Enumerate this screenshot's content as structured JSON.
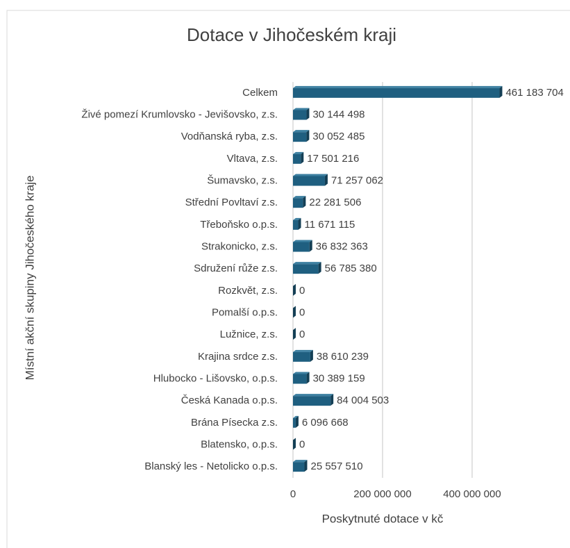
{
  "chart_data": {
    "type": "bar",
    "orientation": "horizontal",
    "title": "Dotace v Jihočeském kraji",
    "y_label": "Místní akční skupiny Jihočeského kraje",
    "x_label": "Poskytnuté dotace v kč",
    "categories": [
      "Celkem",
      "Živé pomezí Krumlovsko - Jevišovsko, z.s.",
      "Vodňanská ryba, z.s.",
      "Vltava, z.s.",
      "Šumavsko, z.s.",
      "Střední Povltaví z.s.",
      "Třeboňsko o.p.s.",
      "Strakonicko, z.s.",
      "Sdružení růže z.s.",
      "Rozkvět, z.s.",
      "Pomalší o.p.s.",
      "Lužnice, z.s.",
      "Krajina srdce z.s.",
      "Hlubocko - Lišovsko, o.p.s.",
      "Česká Kanada o.p.s.",
      "Brána Písecka z.s.",
      "Blatensko, o.p.s.",
      "Blanský les - Netolicko o.p.s."
    ],
    "values": [
      461183704,
      30144498,
      30052485,
      17501216,
      71257062,
      22281506,
      11671115,
      36832363,
      56785380,
      0,
      0,
      0,
      38610239,
      30389159,
      84004503,
      6096668,
      0,
      25557510
    ],
    "value_labels": [
      "461 183 704",
      "30 144 498",
      "30 052 485",
      "17 501 216",
      "71 257 062",
      "22 281 506",
      "11 671 115",
      "36 832 363",
      "56 785 380",
      "0",
      "0",
      "0",
      "38 610 239",
      "30 389 159",
      "84 004 503",
      "6 096 668",
      "0",
      "25 557 510"
    ],
    "color": "#1f5f80",
    "xlim": [
      0,
      600000000
    ],
    "xticks": [
      0,
      {
        "value": 200000000,
        "label": "200 000 000"
      },
      {
        "value": 400000000,
        "label": "400 000 000"
      }
    ],
    "grid": true
  }
}
